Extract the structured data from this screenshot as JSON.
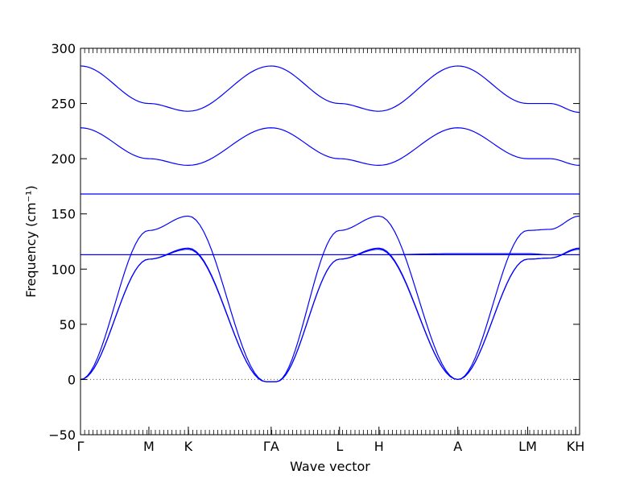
{
  "chart_data": {
    "type": "line",
    "title": "",
    "xlabel": "Wave vector",
    "ylabel": "Frequency (cm⁻¹)",
    "ylim": [
      -50,
      300
    ],
    "yticks": [
      -50,
      0,
      50,
      100,
      150,
      200,
      250,
      300
    ],
    "grid": false,
    "line_color": "#0000ff",
    "zero_line_color": "#555555",
    "path_labels": [
      {
        "label": "Γ",
        "x": 0.0
      },
      {
        "label": "M",
        "x": 0.137
      },
      {
        "label": "K",
        "x": 0.216
      },
      {
        "label": "ΓA",
        "x": 0.382
      },
      {
        "label": "L",
        "x": 0.519
      },
      {
        "label": "H",
        "x": 0.598
      },
      {
        "label": "A",
        "x": 0.756
      },
      {
        "label": "LM",
        "x": 0.896
      },
      {
        "label": "KH",
        "x": 0.992
      }
    ],
    "xlim": [
      0,
      1
    ],
    "series": [
      {
        "x": [
          0,
          0.137,
          0.216,
          0.382,
          0.519,
          0.598,
          0.756,
          0.896,
          0.94,
          1.0
        ],
        "values": [
          284,
          250,
          243,
          284,
          250,
          243,
          284,
          250,
          250,
          242
        ]
      },
      {
        "x": [
          0,
          0.137,
          0.216,
          0.382,
          0.519,
          0.598,
          0.756,
          0.896,
          0.94,
          1.0
        ],
        "values": [
          228,
          200,
          194,
          228,
          200,
          194,
          228,
          200,
          200,
          194
        ]
      },
      {
        "x": [
          0,
          0.137,
          0.216,
          0.382,
          0.519,
          0.598,
          0.756,
          0.896,
          0.94,
          1.0
        ],
        "values": [
          168,
          168,
          168,
          168,
          168,
          168,
          168,
          168,
          168,
          168
        ]
      },
      {
        "x": [
          0,
          0.137,
          0.216,
          0.372,
          0.382,
          0.392,
          0.519,
          0.598,
          0.756,
          0.896,
          0.94,
          1.0
        ],
        "values": [
          0,
          135,
          148,
          -2,
          -2,
          -2,
          135,
          148,
          0,
          135,
          136,
          148
        ]
      },
      {
        "x": [
          0,
          0.137,
          0.216,
          0.372,
          0.382,
          0.392,
          0.519,
          0.598,
          0.756,
          0.896,
          0.94,
          1.0
        ],
        "values": [
          0,
          109,
          119,
          -2,
          -2,
          -2,
          109,
          119,
          0,
          109,
          110,
          119
        ]
      },
      {
        "x": [
          0,
          0.137,
          0.216,
          0.372,
          0.382,
          0.392,
          0.519,
          0.598,
          0.756,
          0.896,
          0.94,
          1.0
        ],
        "values": [
          0,
          109,
          118,
          -2,
          -2,
          -2,
          109,
          118,
          0,
          109,
          110,
          118
        ]
      },
      {
        "x": [
          0,
          0.137,
          0.216,
          0.382,
          0.519,
          0.598,
          0.756,
          0.896,
          0.94,
          1.0
        ],
        "values": [
          113,
          113,
          113,
          113,
          113,
          113,
          113,
          113,
          113,
          113
        ]
      },
      {
        "x": [
          0,
          0.137,
          0.216,
          0.382,
          0.519,
          0.598,
          0.756,
          0.896,
          0.94,
          1.0
        ],
        "values": [
          113,
          113,
          113,
          113,
          113,
          113,
          114,
          114,
          113,
          113
        ]
      }
    ]
  }
}
